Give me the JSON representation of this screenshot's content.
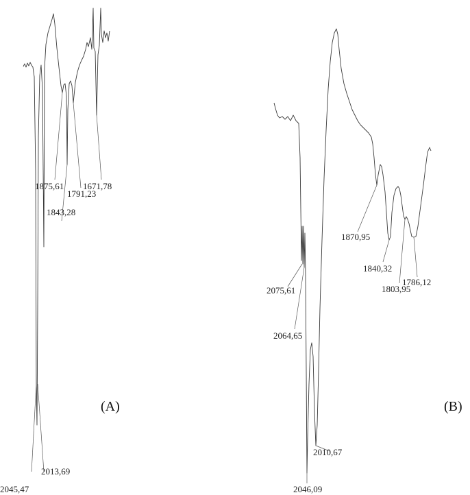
{
  "chart_data": [
    {
      "panel": "(A)",
      "type": "line",
      "title": "",
      "xlabel": "",
      "ylabel": "",
      "grid": false,
      "peaks": [
        {
          "label": "2045,47",
          "x": 2045.47
        },
        {
          "label": "2013,69",
          "x": 2013.69
        },
        {
          "label": "1875,61",
          "x": 1875.61
        },
        {
          "label": "1843,28",
          "x": 1843.28
        },
        {
          "label": "1791,23",
          "x": 1791.23
        },
        {
          "label": "1671,78",
          "x": 1671.78
        }
      ]
    },
    {
      "panel": "(B)",
      "type": "line",
      "title": "",
      "xlabel": "",
      "ylabel": "",
      "grid": false,
      "peaks": [
        {
          "label": "2075,61",
          "x": 2075.61
        },
        {
          "label": "2064,65",
          "x": 2064.65
        },
        {
          "label": "2046,09",
          "x": 2046.09
        },
        {
          "label": "2010,67",
          "x": 2010.67
        },
        {
          "label": "1870,95",
          "x": 1870.95
        },
        {
          "label": "1840,32",
          "x": 1840.32
        },
        {
          "label": "1803,95",
          "x": 1803.95
        },
        {
          "label": "1786,12",
          "x": 1786.12
        }
      ]
    }
  ],
  "colors": {
    "trace": "#3a3a3a",
    "text": "#222222"
  }
}
